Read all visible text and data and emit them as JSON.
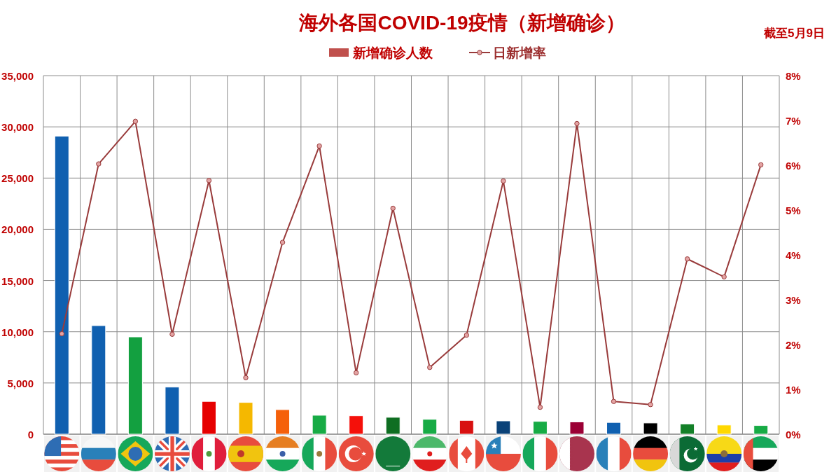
{
  "chart_data": {
    "type": "bar",
    "title": "海外各国COVID-19疫情（新增确诊）",
    "annotations": [
      "截至5月9日"
    ],
    "categories": [
      null,
      null,
      null,
      null,
      null,
      null,
      null,
      null,
      null,
      null,
      null,
      null,
      null,
      null,
      null,
      null,
      null,
      null,
      null,
      null
    ],
    "series": [
      {
        "name": "新增确诊人数",
        "color": "#c0504d",
        "colors": [
          "#1060b0",
          "#1060b0",
          "#13a040",
          "#1060b0",
          "#e60000",
          "#f5b800",
          "#f5600a",
          "#17ab45",
          "#f5100a",
          "#0f6e22",
          "#17ab45",
          "#d81010",
          "#0a4278",
          "#17ab45",
          "#9b0035",
          "#1060b0",
          "#000000",
          "#138028",
          "#ffd800",
          "#17ab45"
        ],
        "values": [
          29100,
          10600,
          9500,
          4600,
          3200,
          3100,
          2400,
          1850,
          1800,
          1650,
          1450,
          1350,
          1300,
          1250,
          1200,
          1150,
          1100,
          1000,
          900,
          850
        ]
      },
      {
        "name": "日新增率",
        "type": "line",
        "axis": "y2",
        "color": "#993b3b",
        "values": [
          2.24,
          6.03,
          6.98,
          2.23,
          5.66,
          1.26,
          4.28,
          6.43,
          1.37,
          5.04,
          1.49,
          2.21,
          5.65,
          0.6,
          6.93,
          0.73,
          0.66,
          3.91,
          3.51,
          6.01
        ]
      }
    ],
    "ylim": [
      0,
      35000
    ],
    "yticks": [
      0,
      {
        "value": 5000,
        "label": "5,000"
      },
      {
        "value": 10000,
        "label": "10,000"
      },
      {
        "value": 15000,
        "label": "15,000"
      },
      {
        "value": 20000,
        "label": "20,000"
      },
      {
        "value": 25000,
        "label": "25,000"
      },
      {
        "value": 30000,
        "label": "30,000"
      },
      {
        "value": 35000,
        "label": "35,000"
      }
    ],
    "y2lim": [
      0,
      8
    ],
    "y2ticks": [
      {
        "value": 0,
        "label": "0%"
      },
      {
        "value": 1,
        "label": "1%"
      },
      {
        "value": 2,
        "label": "2%"
      },
      {
        "value": 3,
        "label": "3%"
      },
      {
        "value": 4,
        "label": "4%"
      },
      {
        "value": 5,
        "label": "5%"
      },
      {
        "value": 6,
        "label": "6%"
      },
      {
        "value": 7,
        "label": "7%"
      },
      {
        "value": 8,
        "label": "8%"
      }
    ],
    "grid": true,
    "legend": "top",
    "marker": "circle"
  }
}
